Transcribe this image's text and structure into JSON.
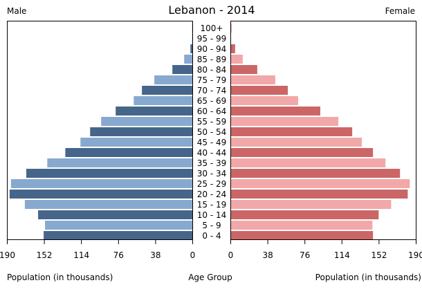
{
  "chart_data": {
    "type": "bar",
    "orientation": "horizontal-pyramid",
    "title": "Lebanon - 2014",
    "left_label": "Male",
    "right_label": "Female",
    "xlabel_left": "Population (in thousands)",
    "xlabel_center": "Age Group",
    "xlabel_right": "Population (in thousands)",
    "xlim": [
      0,
      190
    ],
    "ticks": [
      0,
      38,
      76,
      114,
      152,
      190
    ],
    "grid": false,
    "categories": [
      "0 - 4",
      "5 - 9",
      "10 - 14",
      "15 - 19",
      "20 - 24",
      "25 - 29",
      "30 - 34",
      "35 - 39",
      "40 - 44",
      "45 - 49",
      "50 - 54",
      "55 - 59",
      "60 - 64",
      "65 - 69",
      "70 - 74",
      "75 - 79",
      "80 - 84",
      "85 - 89",
      "90 - 94",
      "95 - 99",
      "100+"
    ],
    "series": [
      {
        "name": "Male",
        "colors": [
          "#46658a",
          "#88a9cf"
        ],
        "values": [
          152.7,
          151.3,
          158.4,
          172,
          187.6,
          186.2,
          170.5,
          149,
          130.5,
          115,
          105.1,
          93.8,
          78.9,
          60.4,
          52,
          39.3,
          20.8,
          8.7,
          2.3,
          0.6,
          0.5
        ]
      },
      {
        "name": "Female",
        "colors": [
          "#cc6666",
          "#f2a8a8"
        ],
        "values": [
          145.8,
          145.2,
          151.6,
          164.4,
          181.4,
          183.5,
          173.5,
          158.6,
          145.8,
          134.4,
          124.5,
          110.3,
          91.8,
          69.1,
          58.5,
          45.7,
          27.2,
          12.3,
          4.5,
          0.3,
          0.7
        ]
      }
    ]
  }
}
